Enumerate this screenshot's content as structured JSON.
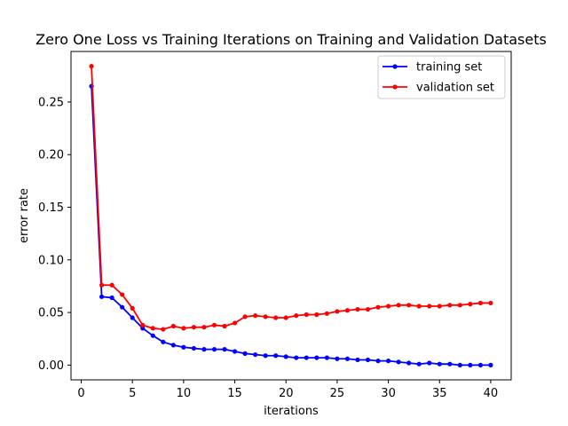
{
  "chart_data": {
    "type": "line",
    "title": "Zero One Loss vs Training Iterations on Training and Validation Datasets",
    "xlabel": "iterations",
    "ylabel": "error rate",
    "xlim": [
      -1.0,
      42.0
    ],
    "ylim": [
      -0.014,
      0.298
    ],
    "xticks": [
      0,
      5,
      10,
      15,
      20,
      25,
      30,
      35,
      40
    ],
    "xtick_labels": [
      "0",
      "5",
      "10",
      "15",
      "20",
      "25",
      "30",
      "35",
      "40"
    ],
    "yticks": [
      0.0,
      0.05,
      0.1,
      0.15,
      0.2,
      0.25
    ],
    "ytick_labels": [
      "0.00",
      "0.05",
      "0.10",
      "0.15",
      "0.20",
      "0.25"
    ],
    "grid": false,
    "legend_position": "top-right",
    "x": [
      1,
      2,
      3,
      4,
      5,
      6,
      7,
      8,
      9,
      10,
      11,
      12,
      13,
      14,
      15,
      16,
      17,
      18,
      19,
      20,
      21,
      22,
      23,
      24,
      25,
      26,
      27,
      28,
      29,
      30,
      31,
      32,
      33,
      34,
      35,
      36,
      37,
      38,
      39,
      40
    ],
    "series": [
      {
        "name": "training set",
        "color": "#0000ff",
        "values": [
          0.265,
          0.065,
          0.064,
          0.055,
          0.045,
          0.035,
          0.028,
          0.022,
          0.019,
          0.017,
          0.016,
          0.015,
          0.015,
          0.015,
          0.013,
          0.011,
          0.01,
          0.009,
          0.009,
          0.008,
          0.007,
          0.007,
          0.007,
          0.007,
          0.006,
          0.006,
          0.005,
          0.005,
          0.004,
          0.004,
          0.003,
          0.002,
          0.001,
          0.002,
          0.001,
          0.001,
          0.0,
          0.0,
          0.0,
          0.0
        ]
      },
      {
        "name": "validation set",
        "color": "#ff0000",
        "values": [
          0.284,
          0.076,
          0.076,
          0.067,
          0.054,
          0.038,
          0.035,
          0.034,
          0.037,
          0.035,
          0.036,
          0.036,
          0.038,
          0.037,
          0.04,
          0.046,
          0.047,
          0.046,
          0.045,
          0.045,
          0.047,
          0.048,
          0.048,
          0.049,
          0.051,
          0.052,
          0.053,
          0.053,
          0.055,
          0.056,
          0.057,
          0.057,
          0.056,
          0.056,
          0.056,
          0.057,
          0.057,
          0.058,
          0.059,
          0.059
        ]
      }
    ]
  }
}
